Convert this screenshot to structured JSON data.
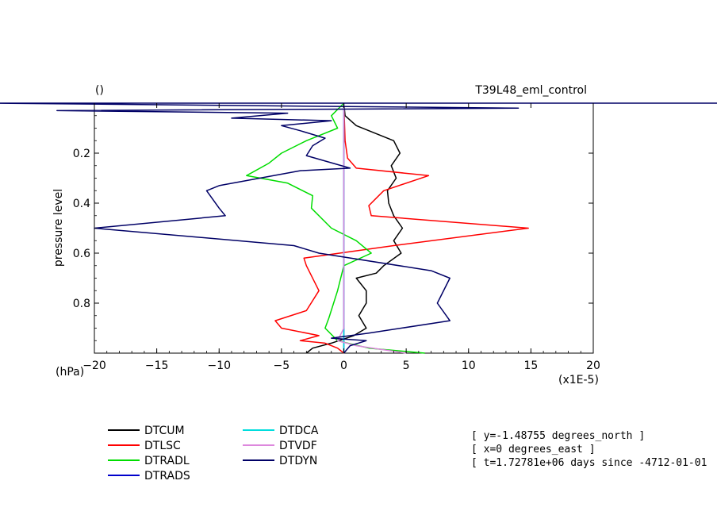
{
  "chart_data": {
    "type": "line",
    "title_left": "()",
    "title_right": "T39L48_eml_control",
    "ylabel": "pressure level",
    "y_unit": "(hPa)",
    "x_scale_label": "(x1E-5)",
    "xlim": [
      -20,
      20
    ],
    "ylim": [
      0,
      1
    ],
    "y_inverted": true,
    "x_ticks": [
      "−20",
      "−15",
      "−10",
      "−5",
      "0",
      "5",
      "10",
      "15",
      "20"
    ],
    "y_ticks": [
      "0.2",
      "0.4",
      "0.6",
      "0.8"
    ],
    "series": [
      {
        "name": "DTCUM",
        "color": "#000000",
        "points": [
          [
            0,
            0.0
          ],
          [
            0.1,
            0.05
          ],
          [
            1.0,
            0.09
          ],
          [
            2.5,
            0.12
          ],
          [
            4.0,
            0.15
          ],
          [
            4.5,
            0.2
          ],
          [
            3.8,
            0.25
          ],
          [
            4.2,
            0.3
          ],
          [
            3.5,
            0.35
          ],
          [
            3.6,
            0.4
          ],
          [
            4.0,
            0.45
          ],
          [
            4.7,
            0.5
          ],
          [
            4.0,
            0.55
          ],
          [
            4.6,
            0.6
          ],
          [
            3.2,
            0.65
          ],
          [
            2.6,
            0.68
          ],
          [
            1.0,
            0.7
          ],
          [
            1.8,
            0.75
          ],
          [
            1.8,
            0.8
          ],
          [
            1.2,
            0.85
          ],
          [
            1.8,
            0.9
          ],
          [
            0.8,
            0.93
          ],
          [
            -1.0,
            0.96
          ],
          [
            -2.5,
            0.98
          ],
          [
            -3.0,
            1.0
          ]
        ]
      },
      {
        "name": "DTLSC",
        "color": "#ff0000",
        "points": [
          [
            0,
            0.0
          ],
          [
            0.1,
            0.15
          ],
          [
            0.3,
            0.22
          ],
          [
            1.0,
            0.26
          ],
          [
            6.8,
            0.29
          ],
          [
            3.2,
            0.35
          ],
          [
            2.0,
            0.41
          ],
          [
            2.2,
            0.45
          ],
          [
            14.8,
            0.5
          ],
          [
            4.0,
            0.57
          ],
          [
            -3.2,
            0.62
          ],
          [
            -3.0,
            0.65
          ],
          [
            -2.0,
            0.75
          ],
          [
            -3.0,
            0.83
          ],
          [
            -5.5,
            0.87
          ],
          [
            -5.0,
            0.9
          ],
          [
            -2.0,
            0.93
          ],
          [
            -3.5,
            0.95
          ],
          [
            -1.5,
            0.96
          ],
          [
            -0.5,
            0.98
          ],
          [
            0,
            1.0
          ]
        ]
      },
      {
        "name": "DTRADL",
        "color": "#00dd00",
        "points": [
          [
            0,
            0.0
          ],
          [
            -1.0,
            0.05
          ],
          [
            -0.5,
            0.1
          ],
          [
            -3.0,
            0.15
          ],
          [
            -5.0,
            0.2
          ],
          [
            -6.0,
            0.24
          ],
          [
            -7.8,
            0.29
          ],
          [
            -4.5,
            0.32
          ],
          [
            -2.5,
            0.37
          ],
          [
            -2.6,
            0.42
          ],
          [
            -1.0,
            0.5
          ],
          [
            1.0,
            0.55
          ],
          [
            2.2,
            0.6
          ],
          [
            0,
            0.65
          ],
          [
            -0.5,
            0.75
          ],
          [
            -1.2,
            0.86
          ],
          [
            -1.5,
            0.9
          ],
          [
            -0.5,
            0.95
          ],
          [
            2.0,
            0.98
          ],
          [
            6.5,
            1.0
          ]
        ]
      },
      {
        "name": "DTRADS",
        "color": "#0000cc",
        "points": [
          [
            0,
            0.0
          ],
          [
            0,
            1.0
          ]
        ]
      },
      {
        "name": "DTDCA",
        "color": "#00dddd",
        "points": [
          [
            0,
            0.0
          ],
          [
            0,
            1.0
          ]
        ]
      },
      {
        "name": "DTVDF",
        "color": "#dd88dd",
        "points": [
          [
            0,
            0.0
          ],
          [
            0,
            0.9
          ],
          [
            -0.5,
            0.95
          ],
          [
            1.0,
            0.97
          ],
          [
            5.0,
            1.0
          ]
        ]
      },
      {
        "name": "DTDYN",
        "color": "#000066",
        "points": [
          [
            -28,
            0.0
          ],
          [
            40,
            0.0
          ],
          [
            -28,
            0.0
          ],
          [
            14,
            0.02
          ],
          [
            -23,
            0.03
          ],
          [
            -4.5,
            0.04
          ],
          [
            -9,
            0.06
          ],
          [
            -1.0,
            0.07
          ],
          [
            -5,
            0.09
          ],
          [
            -3.5,
            0.11
          ],
          [
            -1.5,
            0.14
          ],
          [
            -2.5,
            0.17
          ],
          [
            -3.0,
            0.21
          ],
          [
            0.5,
            0.26
          ],
          [
            -3.5,
            0.27
          ],
          [
            -10,
            0.33
          ],
          [
            -11,
            0.35
          ],
          [
            -10,
            0.42
          ],
          [
            -9.5,
            0.45
          ],
          [
            -20,
            0.5
          ],
          [
            -4.0,
            0.57
          ],
          [
            -2.0,
            0.6
          ],
          [
            7.0,
            0.67
          ],
          [
            8.5,
            0.7
          ],
          [
            7.5,
            0.8
          ],
          [
            8.5,
            0.87
          ],
          [
            2.0,
            0.92
          ],
          [
            -1.0,
            0.94
          ],
          [
            1.8,
            0.95
          ],
          [
            0.5,
            0.97
          ],
          [
            0,
            1.0
          ]
        ]
      }
    ],
    "legend": [
      {
        "name": "DTCUM",
        "color": "#000000"
      },
      {
        "name": "DTLSC",
        "color": "#ff0000"
      },
      {
        "name": "DTRADL",
        "color": "#00dd00"
      },
      {
        "name": "DTRADS",
        "color": "#0000cc"
      },
      {
        "name": "DTDCA",
        "color": "#00dddd"
      },
      {
        "name": "DTVDF",
        "color": "#dd88dd"
      },
      {
        "name": "DTDYN",
        "color": "#000066"
      }
    ],
    "annotations": [
      "[ y=-1.48755 degrees_north ]",
      "[ x=0 degrees_east ]",
      "[ t=1.72781e+06 days since -4712-01-01"
    ]
  }
}
